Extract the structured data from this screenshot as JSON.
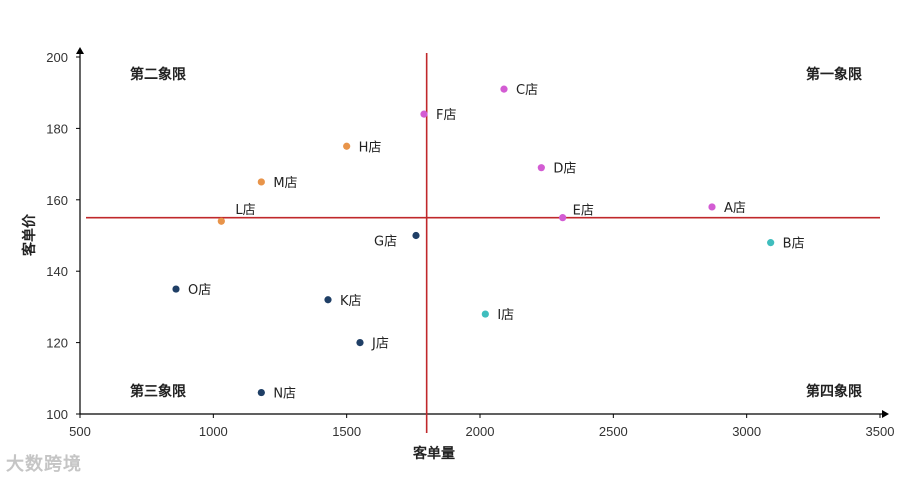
{
  "chart_data": {
    "type": "scatter",
    "title": "",
    "xlabel": "客单量",
    "ylabel": "客单价",
    "xlim": [
      500,
      3500
    ],
    "ylim": [
      100,
      200
    ],
    "xticks": [
      500,
      1000,
      1500,
      2000,
      2500,
      3000,
      3500
    ],
    "yticks": [
      100,
      120,
      140,
      160,
      180,
      200
    ],
    "grid": false,
    "reference_lines": {
      "x": 1800,
      "y": 155,
      "color": "#c0282b"
    },
    "quadrant_labels": {
      "q1": "第一象限",
      "q2": "第二象限",
      "q3": "第三象限",
      "q4": "第四象限"
    },
    "points": [
      {
        "label": "A店",
        "x": 2870,
        "y": 158,
        "color": "#d35cd3"
      },
      {
        "label": "B店",
        "x": 3090,
        "y": 148,
        "color": "#3fbdbd"
      },
      {
        "label": "C店",
        "x": 2090,
        "y": 191,
        "color": "#d35cd3"
      },
      {
        "label": "D店",
        "x": 2230,
        "y": 169,
        "color": "#d35cd3"
      },
      {
        "label": "E店",
        "x": 2310,
        "y": 155,
        "color": "#d35cd3"
      },
      {
        "label": "F店",
        "x": 1790,
        "y": 184,
        "color": "#d35cd3"
      },
      {
        "label": "G店",
        "x": 1760,
        "y": 150,
        "color": "#1f3f66"
      },
      {
        "label": "H店",
        "x": 1500,
        "y": 175,
        "color": "#e8944a"
      },
      {
        "label": "I店",
        "x": 2020,
        "y": 128,
        "color": "#3fbdbd"
      },
      {
        "label": "J店",
        "x": 1550,
        "y": 120,
        "color": "#1f3f66"
      },
      {
        "label": "K店",
        "x": 1430,
        "y": 132,
        "color": "#1f3f66"
      },
      {
        "label": "L店",
        "x": 1030,
        "y": 154,
        "color": "#e8944a"
      },
      {
        "label": "M店",
        "x": 1180,
        "y": 165,
        "color": "#e8944a"
      },
      {
        "label": "N店",
        "x": 1180,
        "y": 106,
        "color": "#1f3f66"
      },
      {
        "label": "O店",
        "x": 860,
        "y": 135,
        "color": "#1f3f66"
      }
    ]
  },
  "watermark": "大数跨境"
}
